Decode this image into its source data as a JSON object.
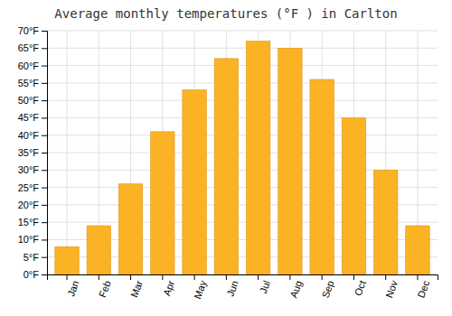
{
  "chart_data": {
    "type": "bar",
    "title": "Average monthly temperatures (°F ) in Carlton",
    "categories": [
      "Jan",
      "Feb",
      "Mar",
      "Apr",
      "May",
      "Jun",
      "Jul",
      "Aug",
      "Sep",
      "Oct",
      "Nov",
      "Dec"
    ],
    "values": [
      8,
      14,
      26,
      41,
      53,
      62,
      67,
      65,
      56,
      45,
      30,
      14
    ],
    "color": "#FBB224",
    "ylim": [
      0,
      70
    ],
    "yticks": [
      {
        "value": 0,
        "label": "0°F"
      },
      {
        "value": 5,
        "label": "5°F"
      },
      {
        "value": 10,
        "label": "10°F"
      },
      {
        "value": 15,
        "label": "15°F"
      },
      {
        "value": 20,
        "label": "20°F"
      },
      {
        "value": 25,
        "label": "25°F"
      },
      {
        "value": 30,
        "label": "30°F"
      },
      {
        "value": 35,
        "label": "35°F"
      },
      {
        "value": 40,
        "label": "40°F"
      },
      {
        "value": 45,
        "label": "45°F"
      },
      {
        "value": 50,
        "label": "50°F"
      },
      {
        "value": 55,
        "label": "55°F"
      },
      {
        "value": 60,
        "label": "60°F"
      },
      {
        "value": 65,
        "label": "65°F"
      },
      {
        "value": 70,
        "label": "70°F"
      }
    ],
    "grid": true
  }
}
